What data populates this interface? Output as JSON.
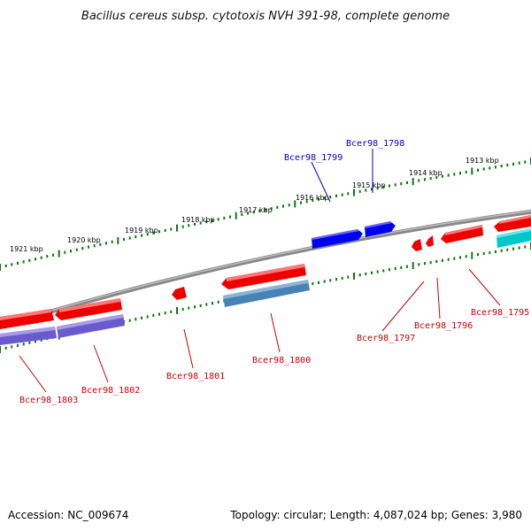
{
  "title": "Bacillus cereus subsp. cytotoxis NVH 391-98, complete genome",
  "accession_text": "Accession: NC_009674",
  "summary_text": "Topology: circular; Length: 4,087,024 bp; Genes: 3,980",
  "colors": {
    "backbone": "#808080",
    "ticks": "#117711",
    "forward_gene": "#ff0000",
    "reverse_gene": "#0000ff",
    "label_reverse": "#0000cc",
    "label_forward": "#cc0000",
    "cds_blue_steel": "#4682b4",
    "cds_slate": "#6a5acd",
    "cds_cyan": "#00c8c8"
  },
  "ticks": [
    {
      "label": "1913 kbp"
    },
    {
      "label": "1914 kbp"
    },
    {
      "label": "1915 kbp"
    },
    {
      "label": "1916 kbp"
    },
    {
      "label": "1917 kbp"
    },
    {
      "label": "1918 kbp"
    },
    {
      "label": "1919 kbp"
    },
    {
      "label": "1920 kbp"
    },
    {
      "label": "1921 kbp"
    }
  ],
  "gene_labels": [
    {
      "name": "Bcer98_1798",
      "strand": "reverse"
    },
    {
      "name": "Bcer98_1799",
      "strand": "reverse"
    },
    {
      "name": "Bcer98_1795",
      "strand": "forward"
    },
    {
      "name": "Bcer98_1796",
      "strand": "forward"
    },
    {
      "name": "Bcer98_1797",
      "strand": "forward"
    },
    {
      "name": "Bcer98_1800",
      "strand": "forward"
    },
    {
      "name": "Bcer98_1801",
      "strand": "forward"
    },
    {
      "name": "Bcer98_1802",
      "strand": "forward"
    },
    {
      "name": "Bcer98_1803",
      "strand": "forward"
    }
  ]
}
